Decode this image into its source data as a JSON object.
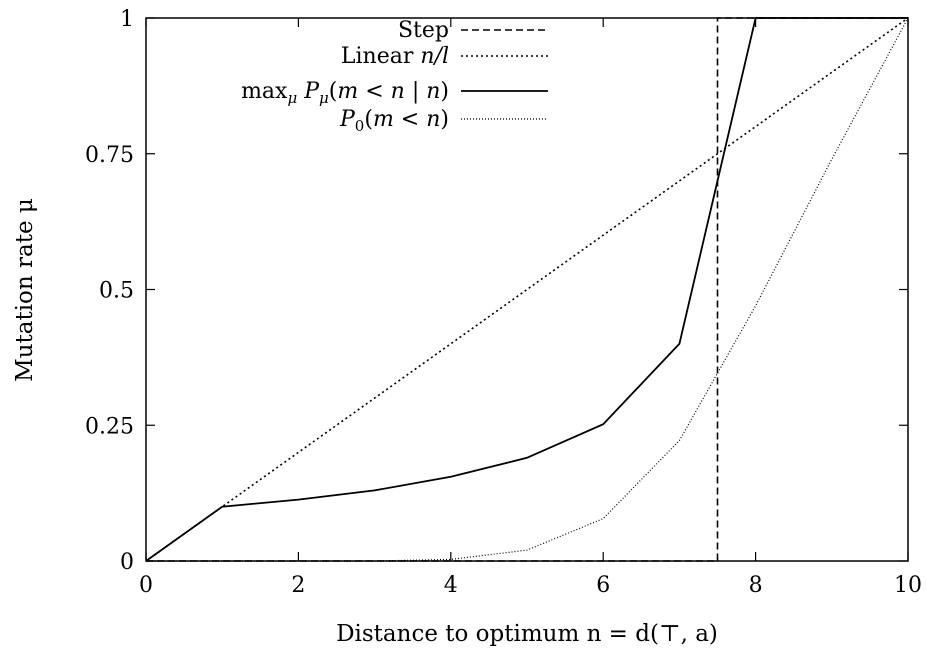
{
  "chart_data": {
    "type": "line",
    "xlabel": "Distance to optimum n = d(⊤, a)",
    "ylabel": "Mutation rate μ",
    "xlim": [
      0,
      10
    ],
    "ylim": [
      0,
      1
    ],
    "xticks": [
      0,
      2,
      4,
      6,
      8,
      10
    ],
    "xtick_labels": [
      "0",
      "2",
      "4",
      "6",
      "8",
      "10"
    ],
    "yticks": [
      0,
      0.25,
      0.5,
      0.75,
      1
    ],
    "ytick_labels": [
      "0",
      "0.25",
      "0.5",
      "0.75",
      "1"
    ],
    "grid": false,
    "legend_position": "top-right",
    "series": [
      {
        "name": "Step",
        "style": "dashed",
        "x": [
          0,
          7.5,
          7.5,
          10
        ],
        "y": [
          0,
          0,
          1,
          1
        ]
      },
      {
        "name": "Linear n/l",
        "style": "dotted",
        "x": [
          0,
          10
        ],
        "y": [
          0,
          1
        ]
      },
      {
        "name": "max_μ P_μ(m < n | n)",
        "style": "solid",
        "x": [
          0,
          1,
          2,
          3,
          4,
          5,
          6,
          7,
          8,
          9,
          10
        ],
        "y": [
          0,
          0.1,
          0.113,
          0.13,
          0.155,
          0.19,
          0.252,
          0.4,
          1,
          1,
          1
        ]
      },
      {
        "name": "P_0(m < n)",
        "style": "fine-dotted",
        "x": [
          0,
          1,
          2,
          3,
          4,
          5,
          6,
          7,
          8,
          9,
          10
        ],
        "y": [
          0,
          0,
          0,
          0,
          0.003,
          0.02,
          0.078,
          0.222,
          0.47,
          0.74,
          1
        ]
      }
    ]
  }
}
